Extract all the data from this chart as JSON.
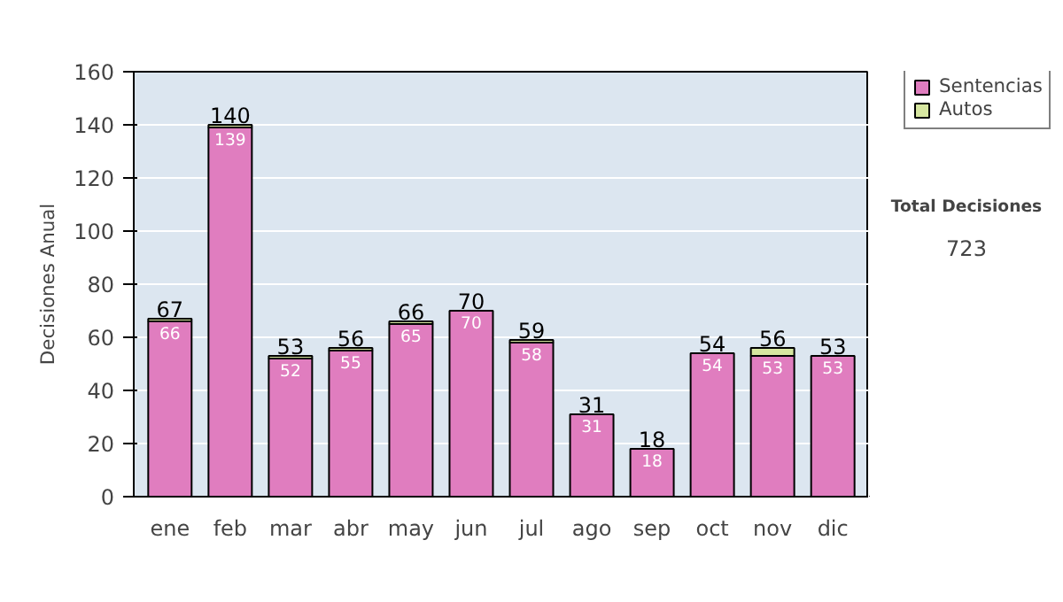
{
  "chart_data": {
    "type": "bar",
    "stacked": true,
    "ylabel": "Decisiones Anual",
    "categories": [
      "ene",
      "feb",
      "mar",
      "abr",
      "may",
      "jun",
      "jul",
      "ago",
      "sep",
      "oct",
      "nov",
      "dic"
    ],
    "series": [
      {
        "name": "Sentencias",
        "color": "#e07dbf",
        "values": [
          66,
          139,
          52,
          55,
          65,
          70,
          58,
          31,
          18,
          54,
          53,
          53
        ],
        "value_labels": [
          "66",
          "139",
          "52",
          "55",
          "65",
          "70",
          "58",
          "31",
          "18",
          "54",
          "53",
          "53"
        ]
      },
      {
        "name": "Autos",
        "color": "#d6e6a0",
        "values": [
          1,
          1,
          1,
          1,
          1,
          0,
          1,
          0,
          0,
          0,
          3,
          0
        ]
      }
    ],
    "totals": [
      "67",
      "140",
      "53",
      "56",
      "66",
      "70",
      "59",
      "31",
      "18",
      "54",
      "56",
      "53"
    ],
    "ylim": [
      0,
      160
    ],
    "yticks": [
      0,
      20,
      40,
      60,
      80,
      100,
      120,
      140,
      160
    ],
    "grid": "y",
    "legend": "right",
    "annotations": [
      "Total Decisiones",
      "723"
    ]
  }
}
